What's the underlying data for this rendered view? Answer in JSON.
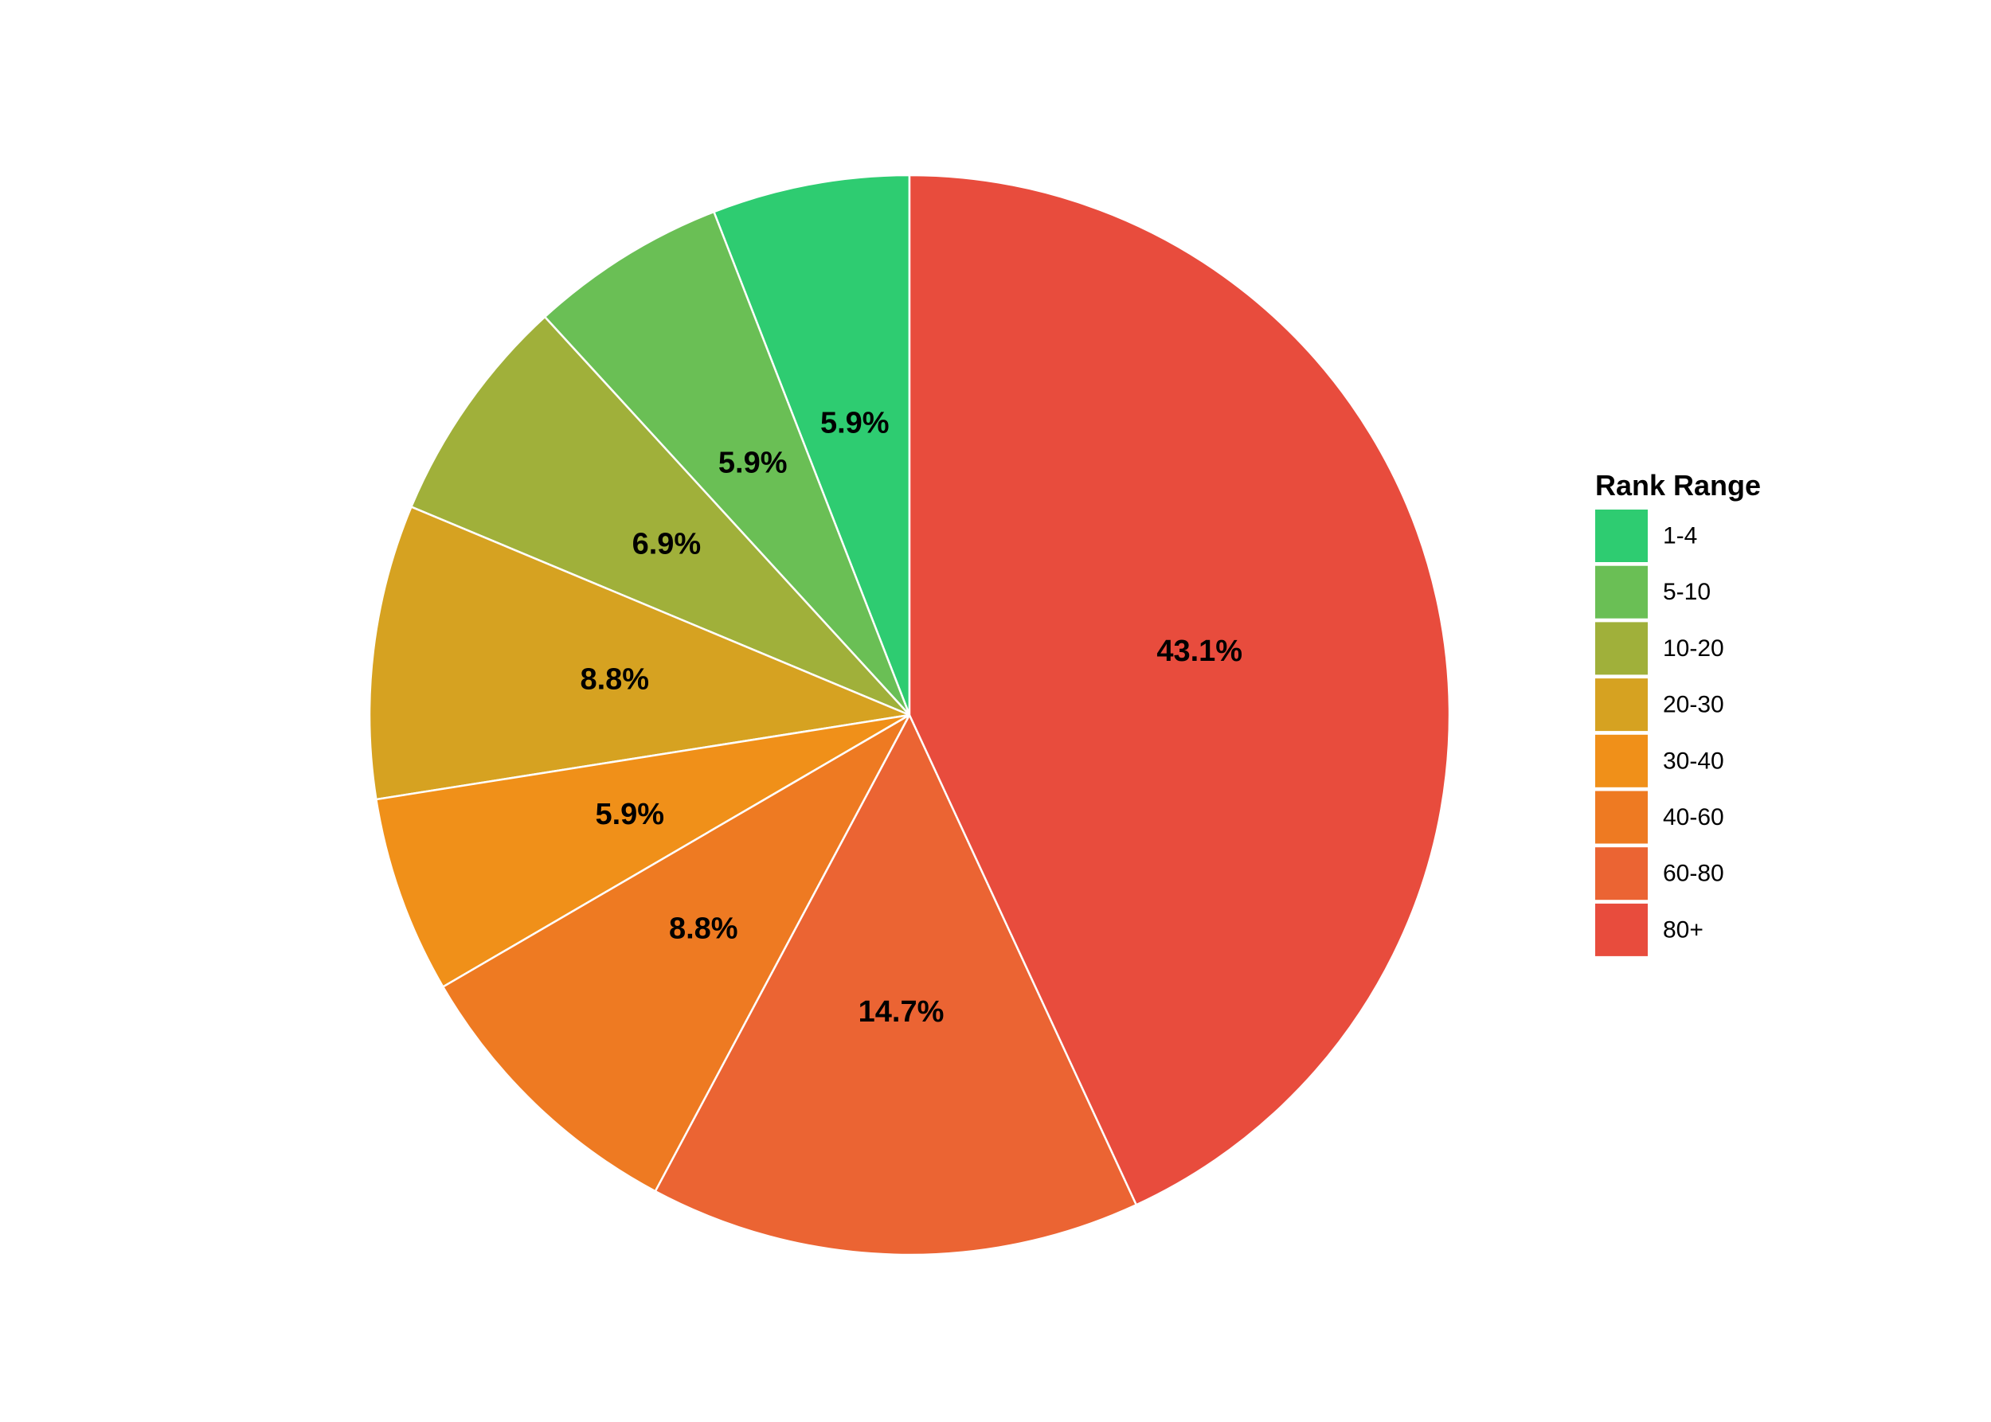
{
  "chart_data": {
    "type": "pie",
    "title": "",
    "categories": [
      "1-4",
      "5-10",
      "10-20",
      "20-30",
      "30-40",
      "40-60",
      "60-80",
      "80+"
    ],
    "values": [
      5.9,
      5.9,
      6.9,
      8.8,
      5.9,
      8.8,
      14.7,
      43.1
    ],
    "labels": [
      "5.9%",
      "5.9%",
      "6.9%",
      "8.8%",
      "5.9%",
      "8.8%",
      "14.7%",
      "43.1%"
    ],
    "colors": [
      "#2ecc71",
      "#6abf55",
      "#a0b03a",
      "#d6a221",
      "#f09019",
      "#ee7a22",
      "#eb6433",
      "#e84c3d"
    ],
    "direction": "counterclockwise",
    "start": "top",
    "legend": {
      "title": "Rank Range",
      "position": "right"
    }
  }
}
